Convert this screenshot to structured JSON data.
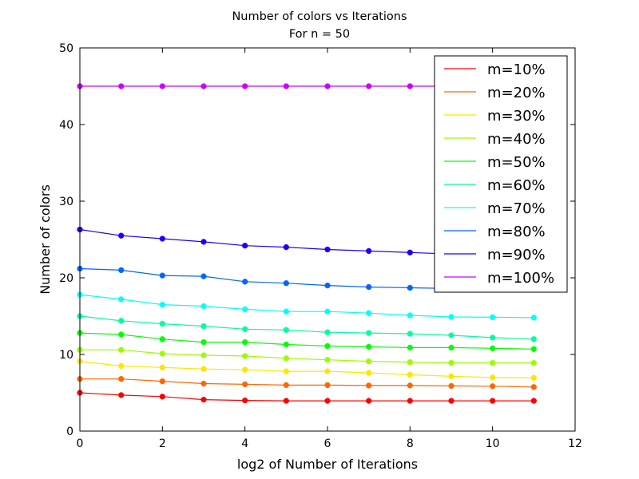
{
  "chart_data": {
    "type": "line",
    "title": "Number of colors vs Iterations",
    "subtitle": "For n = 50",
    "xlabel": "log2 of Number of Iterations",
    "ylabel": "Number of colors",
    "xlim": [
      0,
      12
    ],
    "ylim": [
      0,
      50
    ],
    "x_ticks": [
      "0",
      "2",
      "4",
      "6",
      "8",
      "10",
      "12"
    ],
    "y_ticks": [
      "0",
      "10",
      "20",
      "30",
      "40",
      "50"
    ],
    "grid": false,
    "legend_position": "top-right",
    "markers": true,
    "x": [
      0,
      1,
      2,
      3,
      4,
      5,
      6,
      7,
      8,
      9,
      10,
      11
    ],
    "series": [
      {
        "name": "m=10%",
        "color": "#ff0000",
        "values": [
          5.0,
          4.7,
          4.5,
          4.1,
          4.0,
          3.95,
          3.95,
          3.95,
          3.95,
          3.95,
          3.95,
          3.95
        ]
      },
      {
        "name": "m=20%",
        "color": "#ff6600",
        "values": [
          6.8,
          6.8,
          6.5,
          6.2,
          6.1,
          6.0,
          6.0,
          5.95,
          5.95,
          5.9,
          5.85,
          5.75
        ]
      },
      {
        "name": "m=30%",
        "color": "#ffe600",
        "values": [
          9.1,
          8.5,
          8.3,
          8.1,
          8.0,
          7.8,
          7.8,
          7.6,
          7.35,
          7.15,
          7.0,
          6.95
        ]
      },
      {
        "name": "m=40%",
        "color": "#99ff00",
        "values": [
          10.6,
          10.6,
          10.1,
          9.9,
          9.8,
          9.5,
          9.3,
          9.1,
          9.0,
          8.9,
          8.9,
          8.9
        ]
      },
      {
        "name": "m=50%",
        "color": "#00ff00",
        "values": [
          12.8,
          12.6,
          12.0,
          11.6,
          11.6,
          11.3,
          11.1,
          11.0,
          10.9,
          10.9,
          10.8,
          10.7
        ]
      },
      {
        "name": "m=60%",
        "color": "#00ff99",
        "values": [
          15.0,
          14.4,
          14.0,
          13.7,
          13.3,
          13.2,
          12.9,
          12.8,
          12.7,
          12.5,
          12.2,
          12.0
        ]
      },
      {
        "name": "m=70%",
        "color": "#00ffff",
        "values": [
          17.8,
          17.2,
          16.5,
          16.3,
          15.9,
          15.6,
          15.6,
          15.4,
          15.1,
          14.9,
          14.85,
          14.8
        ]
      },
      {
        "name": "m=80%",
        "color": "#0066ff",
        "values": [
          21.2,
          21.0,
          20.3,
          20.2,
          19.5,
          19.3,
          19.0,
          18.8,
          18.7,
          18.6,
          18.6,
          18.6
        ]
      },
      {
        "name": "m=90%",
        "color": "#1a00ff",
        "values": [
          26.3,
          25.5,
          25.1,
          24.7,
          24.2,
          24.0,
          23.7,
          23.5,
          23.3,
          23.1,
          22.9,
          22.8
        ]
      },
      {
        "name": "m=100%",
        "color": "#cc00ff",
        "values": [
          45,
          45,
          45,
          45,
          45,
          45,
          45,
          45,
          45,
          45,
          45,
          45
        ]
      }
    ]
  }
}
